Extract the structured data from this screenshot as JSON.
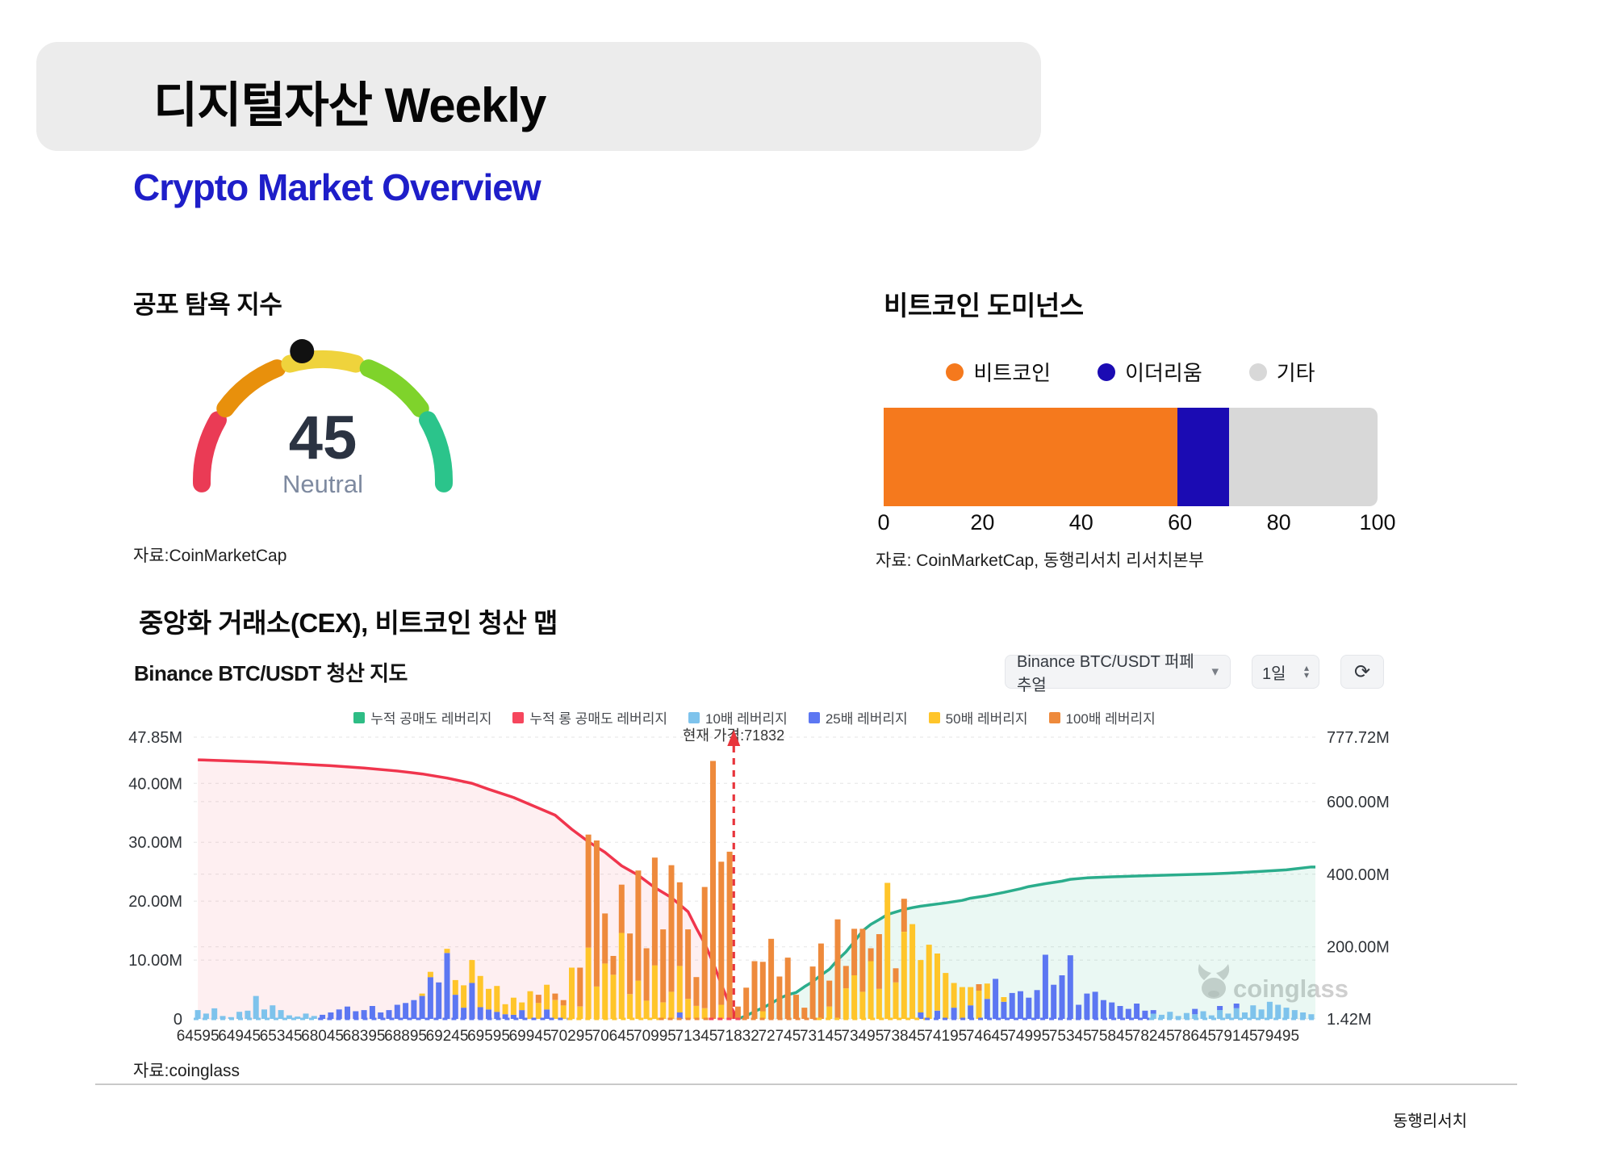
{
  "header": {
    "title": "디지털자산 Weekly"
  },
  "subtitle": "Crypto Market Overview",
  "fear": {
    "heading": "공포 탐욕 지수",
    "source": "자료:CoinMarketCap"
  },
  "dominance": {
    "heading": "비트코인 도미넌스",
    "source": "자료: CoinMarketCap, 동행리서치 리서치본부"
  },
  "liq": {
    "heading": "중앙화 거래소(CEX), 비트코인 청산 맵",
    "chart_title": "Binance BTC/USDT 청산 지도",
    "pair_select": "Binance BTC/USDT 퍼페추얼",
    "interval": "1일",
    "refresh_icon": "⟳",
    "caret": "▾",
    "step_up": "▴",
    "step_down": "▾",
    "current_price_label": "현재 가격:71832",
    "source": "자료:coinglass",
    "watermark": "coinglass"
  },
  "footer": {
    "brand": "동행리서치"
  },
  "chart_data": [
    {
      "type": "gauge",
      "title": "공포 탐욕 지수",
      "value": 45,
      "value_text": "45",
      "label": "Neutral",
      "range": [
        0,
        100
      ],
      "segment_colors": [
        "#ea3b55",
        "#e8900c",
        "#efd33c",
        "#7fd32b",
        "#2bc48b"
      ],
      "value_color": "#2b3342",
      "label_color": "#7e8aa0",
      "pointer_color": "#111111"
    },
    {
      "type": "bar",
      "title": "비트코인 도미넌스",
      "orientation": "horizontal-stacked",
      "categories": [
        "비트코인",
        "이더리움",
        "기타"
      ],
      "values": [
        59.5,
        10.5,
        30
      ],
      "colors": [
        "#f5791d",
        "#1b0bb3",
        "#d8d8d8"
      ],
      "xlim": [
        0,
        100
      ],
      "axis_ticks": [
        "0",
        "20",
        "40",
        "60",
        "80",
        "100"
      ],
      "axis_tick_values": [
        0,
        20,
        40,
        60,
        80,
        100
      ],
      "legend_position": "top"
    },
    {
      "type": "composite",
      "title": "Binance BTC/USDT 청산 지도",
      "legend": [
        {
          "label": "누적 공매도 레버리지",
          "color": "#2ebd85"
        },
        {
          "label": "누적 롱 공매도 레버리지",
          "color": "#f6465d"
        },
        {
          "label": "10배 레버리지",
          "color": "#7ec3ec"
        },
        {
          "label": "25배 레버리지",
          "color": "#5c77f2"
        },
        {
          "label": "50배 레버리지",
          "color": "#ffc52a"
        },
        {
          "label": "100배 레버리지",
          "color": "#ee8a3c"
        }
      ],
      "x_labels": [
        "64595",
        "64945",
        "65345",
        "68045",
        "68395",
        "68895",
        "69245",
        "69595",
        "69945",
        "70295",
        "70645",
        "70995",
        "71345",
        "71832",
        "72745",
        "73145",
        "73495",
        "73845",
        "74195",
        "74645",
        "74995",
        "75345",
        "75845",
        "78245",
        "78645",
        "79145",
        "79495"
      ],
      "bars_per_label": 5,
      "current_price": "71832",
      "current_price_bar_index": 65,
      "left_axis": {
        "ticks": [
          "47.85M",
          "40.00M",
          "30.00M",
          "20.00M",
          "10.00M",
          "0"
        ],
        "values": [
          47.85,
          40,
          30,
          20,
          10,
          0
        ],
        "max": 47.85,
        "min": 0
      },
      "right_axis": {
        "ticks": [
          "777.72M",
          "600.00M",
          "400.00M",
          "200.00M",
          "1.42M"
        ],
        "values": [
          777.72,
          600,
          400,
          200,
          1.42
        ],
        "max": 777.72,
        "min": 1.42
      },
      "bar_colors": [
        "#7ec3ec",
        "#5c77f2",
        "#ffc52a",
        "#ee8a3c"
      ],
      "bar_stacks": [
        [
          1.5,
          0,
          0,
          0
        ],
        [
          0.9,
          0,
          0,
          0
        ],
        [
          1.8,
          0,
          0,
          0
        ],
        [
          0.5,
          0,
          0,
          0
        ],
        [
          0.3,
          0,
          0,
          0
        ],
        [
          1.2,
          0,
          0,
          0
        ],
        [
          1.4,
          0,
          0,
          0
        ],
        [
          3.9,
          0,
          0,
          0
        ],
        [
          1.6,
          0,
          0,
          0
        ],
        [
          2.3,
          0,
          0,
          0
        ],
        [
          1.5,
          0,
          0,
          0
        ],
        [
          0.6,
          0,
          0,
          0
        ],
        [
          0.4,
          0,
          0,
          0
        ],
        [
          0.9,
          0,
          0,
          0
        ],
        [
          0.5,
          0,
          0,
          0
        ],
        [
          0,
          0.7,
          0,
          0
        ],
        [
          0,
          1.1,
          0,
          0
        ],
        [
          0,
          1.6,
          0,
          0
        ],
        [
          0,
          2.1,
          0,
          0
        ],
        [
          0,
          1.3,
          0,
          0
        ],
        [
          0,
          1.5,
          0,
          0
        ],
        [
          0,
          2.2,
          0,
          0
        ],
        [
          0,
          1.1,
          0,
          0
        ],
        [
          0,
          1.5,
          0,
          0
        ],
        [
          0,
          2.4,
          0,
          0
        ],
        [
          0,
          2.7,
          0,
          0
        ],
        [
          0,
          3.2,
          0,
          0
        ],
        [
          0,
          3.9,
          0.4,
          0
        ],
        [
          0,
          7.1,
          0.9,
          0
        ],
        [
          0,
          6.2,
          0,
          0
        ],
        [
          0,
          11.2,
          0.7,
          0
        ],
        [
          0,
          4.1,
          2.5,
          0
        ],
        [
          0,
          1.9,
          3.8,
          0
        ],
        [
          0,
          6.1,
          3.9,
          0
        ],
        [
          0,
          2.0,
          5.3,
          0
        ],
        [
          0,
          1.6,
          3.5,
          0
        ],
        [
          0,
          1.2,
          4.4,
          0
        ],
        [
          0,
          0.8,
          1.7,
          0
        ],
        [
          0,
          0.7,
          2.9,
          0
        ],
        [
          0,
          1.5,
          1.3,
          0
        ],
        [
          0,
          0,
          4.7,
          0
        ],
        [
          0,
          0,
          2.7,
          1.4
        ],
        [
          0,
          1.6,
          4.2,
          0
        ],
        [
          0,
          0,
          3.2,
          1.1
        ],
        [
          0,
          0,
          2.3,
          0.9
        ],
        [
          0,
          0,
          8.7,
          0
        ],
        [
          0,
          0,
          2.1,
          6.6
        ],
        [
          0,
          0,
          12.1,
          19.2
        ],
        [
          0,
          0,
          5.5,
          24.8
        ],
        [
          0,
          0,
          9.4,
          8.5
        ],
        [
          0,
          0,
          7.5,
          3.2
        ],
        [
          0,
          0,
          14.6,
          8.2
        ],
        [
          0,
          0,
          4.2,
          10.3
        ],
        [
          0,
          0,
          6.5,
          18.7
        ],
        [
          0,
          0,
          3.1,
          8.9
        ],
        [
          0,
          0,
          9.1,
          18.3
        ],
        [
          0,
          0,
          2.8,
          12.4
        ],
        [
          0,
          0,
          4.6,
          21.5
        ],
        [
          0,
          1.1,
          7.9,
          14.2
        ],
        [
          0,
          0,
          3.4,
          11.8
        ],
        [
          0,
          0,
          2.2,
          4.9
        ],
        [
          0,
          0,
          1.8,
          20.6
        ],
        [
          0,
          0,
          0,
          43.8
        ],
        [
          0,
          0,
          2.4,
          24.3
        ],
        [
          0,
          0,
          0,
          28.4
        ],
        [
          0,
          0,
          0,
          2.1
        ],
        [
          0,
          0,
          0,
          5.3
        ],
        [
          0,
          0,
          0,
          9.8
        ],
        [
          0,
          0,
          1.3,
          8.4
        ],
        [
          0,
          0,
          0,
          13.6
        ],
        [
          0,
          0,
          0,
          7.2
        ],
        [
          0,
          0,
          0,
          10.4
        ],
        [
          0,
          0,
          0,
          4.1
        ],
        [
          0,
          0,
          0,
          1.9
        ],
        [
          0,
          0,
          0,
          8.9
        ],
        [
          0,
          0,
          0,
          12.8
        ],
        [
          0,
          0,
          2.1,
          4.4
        ],
        [
          0,
          0,
          0,
          16.9
        ],
        [
          0,
          0,
          5.2,
          3.8
        ],
        [
          0,
          0,
          7.4,
          7.9
        ],
        [
          0,
          0,
          4.6,
          10.7
        ],
        [
          0,
          0,
          9.8,
          2.2
        ],
        [
          0,
          0,
          5.1,
          9.3
        ],
        [
          0,
          0,
          23.1,
          0
        ],
        [
          0,
          0,
          6.2,
          2.4
        ],
        [
          0,
          0,
          14.8,
          5.6
        ],
        [
          0,
          0,
          16.1,
          0
        ],
        [
          0,
          1.1,
          8.9,
          0
        ],
        [
          0,
          0,
          12.6,
          0
        ],
        [
          0,
          1.4,
          9.7,
          0
        ],
        [
          0,
          0,
          7.8,
          0
        ],
        [
          0,
          1.9,
          4.2,
          0
        ],
        [
          0,
          0,
          5.4,
          0
        ],
        [
          0,
          2.3,
          3.1,
          0
        ],
        [
          0,
          0,
          4.8,
          1.1
        ],
        [
          0,
          3.4,
          2.6,
          0
        ],
        [
          0,
          6.8,
          0,
          0
        ],
        [
          0,
          2.9,
          0.8,
          0
        ],
        [
          0,
          4.4,
          0,
          0
        ],
        [
          0,
          4.7,
          0,
          0
        ],
        [
          0,
          3.6,
          0,
          0
        ],
        [
          0,
          4.9,
          0,
          0
        ],
        [
          0,
          10.9,
          0,
          0
        ],
        [
          0,
          5.8,
          0,
          0
        ],
        [
          0,
          7.4,
          0,
          0
        ],
        [
          0,
          10.8,
          0,
          0
        ],
        [
          0,
          2.4,
          0,
          0
        ],
        [
          0,
          4.3,
          0,
          0
        ],
        [
          0,
          4.6,
          0,
          0
        ],
        [
          0,
          3.2,
          0,
          0
        ],
        [
          0,
          2.8,
          0,
          0
        ],
        [
          0,
          2.2,
          0,
          0
        ],
        [
          0,
          1.7,
          0,
          0
        ],
        [
          0,
          2.6,
          0,
          0
        ],
        [
          0,
          1.4,
          0,
          0
        ],
        [
          0.9,
          0.6,
          0,
          0
        ],
        [
          0.7,
          0,
          0,
          0
        ],
        [
          1.2,
          0,
          0,
          0
        ],
        [
          0.5,
          0,
          0,
          0
        ],
        [
          1.0,
          0,
          0,
          0
        ],
        [
          0.8,
          0.9,
          0,
          0
        ],
        [
          1.3,
          0,
          0,
          0
        ],
        [
          0.6,
          0,
          0,
          0
        ],
        [
          1.5,
          0.7,
          0,
          0
        ],
        [
          0.9,
          0,
          0,
          0
        ],
        [
          1.8,
          0.8,
          0,
          0
        ],
        [
          1.1,
          0,
          0,
          0
        ],
        [
          2.3,
          0,
          0,
          0
        ],
        [
          1.6,
          0,
          0,
          0
        ],
        [
          2.9,
          0,
          0,
          0
        ],
        [
          2.4,
          0,
          0,
          0
        ],
        [
          1.9,
          0,
          0,
          0
        ],
        [
          1.5,
          0,
          0,
          0
        ],
        [
          1.1,
          0,
          0,
          0
        ],
        [
          0.8,
          0,
          0,
          0
        ]
      ],
      "red_line": {
        "name": "누적 롱 공매도 레버리지",
        "color": "#f0354d",
        "fill": "rgba(246,70,93,0.085)",
        "axis": "left",
        "points": [
          [
            0,
            44
          ],
          [
            4,
            43.8
          ],
          [
            8,
            43.6
          ],
          [
            12,
            43.3
          ],
          [
            16,
            43.0
          ],
          [
            20,
            42.6
          ],
          [
            24,
            42.1
          ],
          [
            27,
            41.6
          ],
          [
            30,
            40.9
          ],
          [
            33,
            40.0
          ],
          [
            35,
            39.0
          ],
          [
            38,
            37.6
          ],
          [
            40,
            36.4
          ],
          [
            43,
            34.6
          ],
          [
            45,
            32.2
          ],
          [
            47,
            30.1
          ],
          [
            49,
            28.3
          ],
          [
            51,
            26.0
          ],
          [
            53,
            24.4
          ],
          [
            55,
            22.3
          ],
          [
            57,
            20.6
          ],
          [
            59,
            18.2
          ],
          [
            60,
            15.4
          ],
          [
            61,
            12.8
          ],
          [
            62,
            9.6
          ],
          [
            63,
            5.9
          ],
          [
            64,
            2.4
          ],
          [
            65,
            0
          ]
        ]
      },
      "teal_line": {
        "name": "누적 공매도 레버리지",
        "color": "#2bad8c",
        "fill": "rgba(46,189,133,0.10)",
        "axis": "right",
        "points": [
          [
            65,
            1.42
          ],
          [
            66,
            10
          ],
          [
            67,
            22
          ],
          [
            68,
            32
          ],
          [
            69,
            44
          ],
          [
            70,
            58
          ],
          [
            71,
            68
          ],
          [
            72,
            74
          ],
          [
            73,
            90
          ],
          [
            74,
            104
          ],
          [
            75,
            122
          ],
          [
            76,
            138
          ],
          [
            77,
            164
          ],
          [
            78,
            186
          ],
          [
            79,
            214
          ],
          [
            80,
            244
          ],
          [
            81,
            262
          ],
          [
            82,
            275
          ],
          [
            83,
            289
          ],
          [
            84,
            296
          ],
          [
            85,
            303
          ],
          [
            86,
            308
          ],
          [
            87,
            312
          ],
          [
            88,
            315
          ],
          [
            90,
            321
          ],
          [
            92,
            328
          ],
          [
            93,
            334
          ],
          [
            95,
            341
          ],
          [
            97,
            350
          ],
          [
            99,
            360
          ],
          [
            100,
            366
          ],
          [
            102,
            374
          ],
          [
            104,
            381
          ],
          [
            105,
            386
          ],
          [
            107,
            390
          ],
          [
            110,
            393
          ],
          [
            113,
            395
          ],
          [
            116,
            397
          ],
          [
            119,
            399
          ],
          [
            122,
            401
          ],
          [
            125,
            404
          ],
          [
            128,
            408
          ],
          [
            131,
            412
          ],
          [
            134,
            420
          ]
        ]
      },
      "baseline_segments": [
        [
          0,
          15,
          "#7ec3ec"
        ],
        [
          15,
          45,
          "#5c77f2"
        ],
        [
          45,
          56,
          "#ffc52a"
        ],
        [
          56,
          62,
          "#ee8a3c"
        ],
        [
          62,
          66,
          "#f6465d"
        ],
        [
          66,
          75,
          "#ee8a3c"
        ],
        [
          75,
          88,
          "#ffc52a"
        ],
        [
          88,
          115,
          "#5c77f2"
        ],
        [
          115,
          135,
          "#7ec3ec"
        ]
      ],
      "grid": "dashed",
      "current_price_line_color": "#e8353c"
    }
  ]
}
